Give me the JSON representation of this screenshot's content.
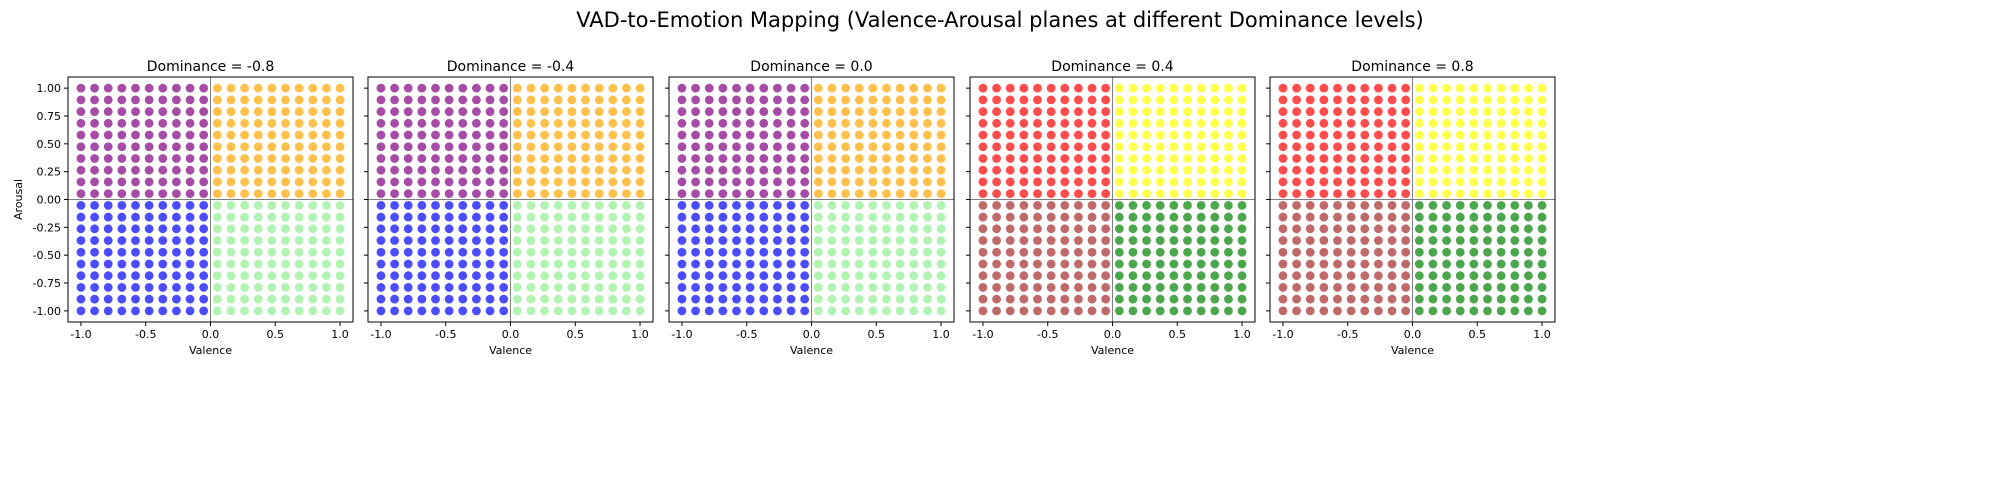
{
  "figure_title": "VAD-to-Emotion Mapping (Valence-Arousal planes at different Dominance levels)",
  "colors": {
    "q_pos_pos_low": "#FFA500",
    "q_neg_pos_low": "#800080",
    "q_neg_neg_low": "#0000FF",
    "q_pos_neg_low": "#90EE90",
    "q_pos_pos_high": "#FFFF00",
    "q_neg_pos_high": "#FF0000",
    "q_neg_neg_high": "#A52A2A",
    "q_pos_neg_high": "#008000"
  },
  "chart_data": [
    {
      "type": "scatter",
      "title": "Dominance = -0.8",
      "xlabel": "Valence",
      "ylabel": "Arousal",
      "xlim": [
        -1.1,
        1.1
      ],
      "ylim": [
        -1.1,
        1.1
      ],
      "xticks": [
        "-1.0",
        "-0.5",
        "0.0",
        "0.5",
        "1.0"
      ],
      "yticks": [
        "-1.00",
        "-0.75",
        "-0.50",
        "-0.25",
        "0.00",
        "0.25",
        "0.50",
        "0.75",
        "1.00"
      ],
      "grid_range": [
        -1,
        1
      ],
      "grid_count": 20,
      "quadrant_colors": {
        "pos_pos": "#FFA500",
        "neg_pos": "#800080",
        "neg_neg": "#0000FF",
        "pos_neg": "#90EE90"
      }
    },
    {
      "type": "scatter",
      "title": "Dominance = -0.4",
      "xlabel": "Valence",
      "ylabel": "",
      "xlim": [
        -1.1,
        1.1
      ],
      "ylim": [
        -1.1,
        1.1
      ],
      "xticks": [
        "-1.0",
        "-0.5",
        "0.0",
        "0.5",
        "1.0"
      ],
      "yticks": [],
      "grid_range": [
        -1,
        1
      ],
      "grid_count": 20,
      "quadrant_colors": {
        "pos_pos": "#FFA500",
        "neg_pos": "#800080",
        "neg_neg": "#0000FF",
        "pos_neg": "#90EE90"
      }
    },
    {
      "type": "scatter",
      "title": "Dominance = 0.0",
      "xlabel": "Valence",
      "ylabel": "",
      "xlim": [
        -1.1,
        1.1
      ],
      "ylim": [
        -1.1,
        1.1
      ],
      "xticks": [
        "-1.0",
        "-0.5",
        "0.0",
        "0.5",
        "1.0"
      ],
      "yticks": [],
      "grid_range": [
        -1,
        1
      ],
      "grid_count": 20,
      "quadrant_colors": {
        "pos_pos": "#FFA500",
        "neg_pos": "#800080",
        "neg_neg": "#0000FF",
        "pos_neg": "#90EE90"
      }
    },
    {
      "type": "scatter",
      "title": "Dominance = 0.4",
      "xlabel": "Valence",
      "ylabel": "",
      "xlim": [
        -1.1,
        1.1
      ],
      "ylim": [
        -1.1,
        1.1
      ],
      "xticks": [
        "-1.0",
        "-0.5",
        "0.0",
        "0.5",
        "1.0"
      ],
      "yticks": [],
      "grid_range": [
        -1,
        1
      ],
      "grid_count": 20,
      "quadrant_colors": {
        "pos_pos": "#FFFF00",
        "neg_pos": "#FF0000",
        "neg_neg": "#A52A2A",
        "pos_neg": "#008000"
      }
    },
    {
      "type": "scatter",
      "title": "Dominance = 0.8",
      "xlabel": "Valence",
      "ylabel": "",
      "xlim": [
        -1.1,
        1.1
      ],
      "ylim": [
        -1.1,
        1.1
      ],
      "xticks": [
        "-1.0",
        "-0.5",
        "0.0",
        "0.5",
        "1.0"
      ],
      "yticks": [],
      "grid_range": [
        -1,
        1
      ],
      "grid_count": 20,
      "quadrant_colors": {
        "pos_pos": "#FFFF00",
        "neg_pos": "#FF0000",
        "neg_neg": "#A52A2A",
        "pos_neg": "#008000"
      }
    }
  ]
}
